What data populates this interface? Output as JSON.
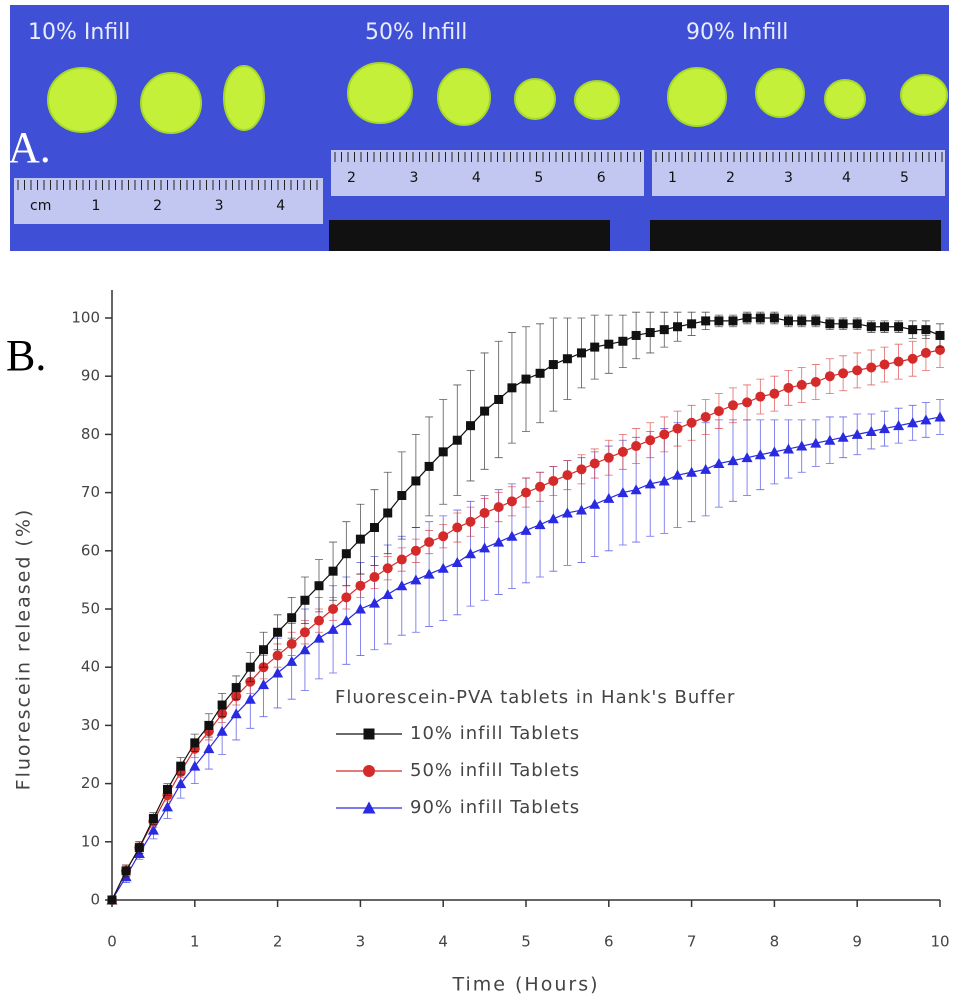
{
  "photo": {
    "label": "A.",
    "panels": [
      {
        "title": "10% Infill",
        "ruler_labels": [
          "cm",
          "1",
          "2",
          "3",
          "4"
        ]
      },
      {
        "title": "50% Infill",
        "ruler_labels": [
          "2",
          "3",
          "4",
          "5",
          "6"
        ]
      },
      {
        "title": "90% Infill",
        "ruler_labels": [
          "1",
          "2",
          "3",
          "4",
          "5"
        ]
      }
    ]
  },
  "chart_data": {
    "type": "line",
    "panel_label": "B.",
    "x_label": "Time (Hours)",
    "y_label": "Fluorescein released (%)",
    "legend_title": "Fluorescein-PVA tablets in Hank's Buffer",
    "x": [
      0,
      0.17,
      0.33,
      0.5,
      0.67,
      0.83,
      1,
      1.17,
      1.33,
      1.5,
      1.67,
      1.83,
      2,
      2.17,
      2.33,
      2.5,
      2.67,
      2.83,
      3,
      3.17,
      3.33,
      3.5,
      3.67,
      3.83,
      4,
      4.17,
      4.33,
      4.5,
      4.67,
      4.83,
      5,
      5.17,
      5.33,
      5.5,
      5.67,
      5.83,
      6,
      6.17,
      6.33,
      6.5,
      6.67,
      6.83,
      7,
      7.17,
      7.33,
      7.5,
      7.67,
      7.83,
      8,
      8.17,
      8.33,
      8.5,
      8.67,
      8.83,
      9,
      9.17,
      9.33,
      9.5,
      9.67,
      9.83,
      10
    ],
    "series": [
      {
        "name": "10% infill Tablets",
        "color": "#111111",
        "marker": "square",
        "values": [
          0,
          5,
          9,
          14,
          19,
          23,
          27,
          30,
          33.5,
          36.5,
          40,
          43,
          46,
          48.5,
          51.5,
          54,
          56.5,
          59.5,
          62,
          64,
          66.5,
          69.5,
          72,
          74.5,
          77,
          79,
          81.5,
          84,
          86,
          88,
          89.5,
          90.5,
          92,
          93,
          94,
          95,
          95.5,
          96,
          97,
          97.5,
          98,
          98.5,
          99,
          99.5,
          99.5,
          99.5,
          100,
          100,
          100,
          99.5,
          99.5,
          99.5,
          99,
          99,
          99,
          98.5,
          98.5,
          98.5,
          98,
          98,
          97
        ],
        "errors": [
          0,
          1,
          1,
          1,
          1,
          1.5,
          1.5,
          2,
          2,
          2,
          2.5,
          3,
          3,
          3.5,
          4,
          4.5,
          5,
          5.5,
          6,
          6.5,
          7,
          7.5,
          8,
          8.5,
          9,
          9.5,
          9.5,
          10,
          10,
          9.5,
          9,
          8.5,
          8,
          7,
          6,
          5.5,
          5,
          4.5,
          4,
          3.5,
          3,
          2.5,
          2,
          1.5,
          1,
          1,
          1,
          1,
          1,
          1,
          1,
          1,
          1,
          1,
          1,
          1,
          1,
          1,
          1.5,
          1.5,
          2
        ]
      },
      {
        "name": "50% infill Tablets",
        "color": "#d42a2a",
        "marker": "circle",
        "values": [
          0,
          5,
          9,
          13.5,
          18,
          22,
          26,
          29,
          32,
          35,
          37.5,
          40,
          42,
          44,
          46,
          48,
          50,
          52,
          54,
          55.5,
          57,
          58.5,
          60,
          61.5,
          62.5,
          64,
          65,
          66.5,
          67.5,
          68.5,
          70,
          71,
          72,
          73,
          74,
          75,
          76,
          77,
          78,
          79,
          80,
          81,
          82,
          83,
          84,
          85,
          85.5,
          86.5,
          87,
          88,
          88.5,
          89,
          90,
          90.5,
          91,
          91.5,
          92,
          92.5,
          93,
          94,
          94.5
        ],
        "errors": [
          0,
          1,
          1,
          1,
          1,
          1,
          1.5,
          1.5,
          1.5,
          1.5,
          2,
          2,
          2,
          2,
          2,
          2,
          2,
          2,
          2,
          2,
          2,
          2,
          2,
          2,
          2,
          2.5,
          2.5,
          2.5,
          2.5,
          2.5,
          2.5,
          2.5,
          2.5,
          2.5,
          2.5,
          2.5,
          3,
          3,
          3,
          3,
          3,
          3,
          3,
          3,
          3,
          3,
          3,
          3,
          3,
          3,
          3,
          3,
          3,
          3,
          3,
          3,
          3,
          3,
          3,
          3,
          3
        ]
      },
      {
        "name": "90% infill Tablets",
        "color": "#2a2ae0",
        "marker": "triangle",
        "values": [
          0,
          4,
          8,
          12,
          16,
          20,
          23,
          26,
          29,
          32,
          34.5,
          37,
          39,
          41,
          43,
          45,
          46.5,
          48,
          50,
          51,
          52.5,
          54,
          55,
          56,
          57,
          58,
          59.5,
          60.5,
          61.5,
          62.5,
          63.5,
          64.5,
          65.5,
          66.5,
          67,
          68,
          69,
          70,
          70.5,
          71.5,
          72,
          73,
          73.5,
          74,
          75,
          75.5,
          76,
          76.5,
          77,
          77.5,
          78,
          78.5,
          79,
          79.5,
          80,
          80.5,
          81,
          81.5,
          82,
          82.5,
          83
        ],
        "errors": [
          0,
          1,
          1,
          1.5,
          2,
          2.5,
          3,
          3.5,
          4,
          4.5,
          5,
          5.5,
          6,
          6.5,
          7,
          7,
          7.5,
          7.5,
          8,
          8,
          8.5,
          8.5,
          9,
          9,
          9,
          9,
          9,
          9,
          9,
          9,
          9,
          9,
          9,
          9,
          9,
          9,
          9,
          9,
          9,
          9,
          9,
          9,
          8.5,
          8,
          7.5,
          7,
          6.5,
          6,
          5.5,
          5,
          4.5,
          4,
          4,
          3.5,
          3.5,
          3,
          3,
          3,
          3,
          3,
          3
        ]
      }
    ],
    "xlim": [
      0,
      10
    ],
    "xticks": [
      0,
      1,
      2,
      3,
      4,
      5,
      6,
      7,
      8,
      9,
      10
    ],
    "ylim": [
      0,
      100
    ],
    "yticks": [
      0,
      10,
      20,
      30,
      40,
      50,
      60,
      70,
      80,
      90,
      100
    ]
  }
}
